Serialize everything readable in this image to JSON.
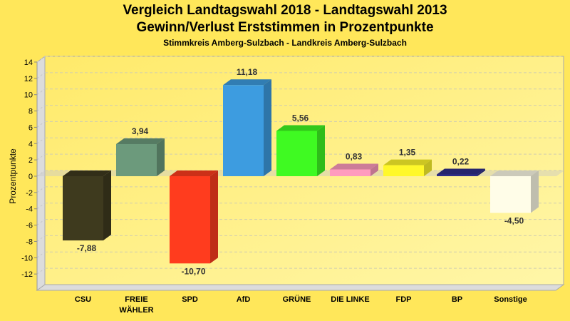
{
  "chart_data": {
    "type": "bar",
    "title": "Vergleich Landtagswahl 2018 - Landtagswahl 2013",
    "subtitle": "Gewinn/Verlust Erststimmen in Prozentpunkte",
    "subsubtitle": "Stimmkreis Amberg-Sulzbach - Landkreis Amberg-Sulzbach",
    "xlabel": "",
    "ylabel": "Prozentpunkte",
    "ylim": [
      -14,
      14
    ],
    "yticks": [
      14,
      12,
      10,
      8,
      6,
      4,
      2,
      0,
      -2,
      -4,
      -6,
      -8,
      -10,
      -12
    ],
    "grid": true,
    "categories": [
      "CSU",
      "FREIE WÄHLER",
      "SPD",
      "AfD",
      "GRÜNE",
      "DIE LINKE",
      "FDP",
      "BP",
      "Sonstige"
    ],
    "category_lines": [
      [
        "CSU"
      ],
      [
        "FREIE",
        "WÄHLER"
      ],
      [
        "SPD"
      ],
      [
        "AfD"
      ],
      [
        "GRÜNE"
      ],
      [
        "DIE LINKE"
      ],
      [
        "FDP"
      ],
      [
        "BP"
      ],
      [
        "Sonstige"
      ]
    ],
    "values": [
      -7.88,
      3.94,
      -10.7,
      11.18,
      5.56,
      0.83,
      1.35,
      0.22,
      -4.5
    ],
    "value_labels": [
      "-7,88",
      "3,94",
      "-10,70",
      "11,18",
      "5,56",
      "0,83",
      "1,35",
      "0,22",
      "-4,50"
    ],
    "colors": [
      "#3E3A1E",
      "#6C9A7C",
      "#FF3C1E",
      "#3D9CE0",
      "#3FFA22",
      "#FF9BBE",
      "#FFF82A",
      "#2E2E88",
      "#FFFDE8"
    ]
  }
}
